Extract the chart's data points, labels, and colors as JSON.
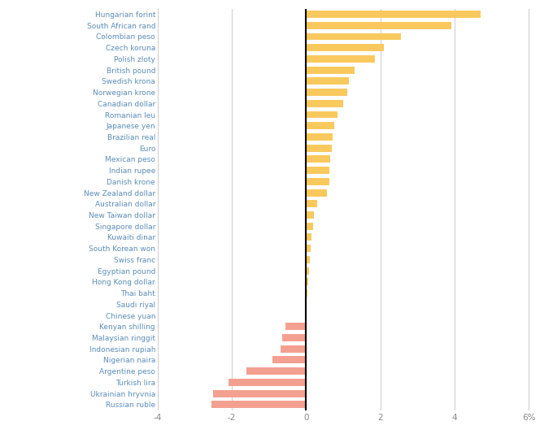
{
  "currencies": [
    "Hungarian forint",
    "South African rand",
    "Colombian peso",
    "Czech koruna",
    "Polish zloty",
    "British pound",
    "Swedish krona",
    "Norwegian krone",
    "Canadian dollar",
    "Romanian leu",
    "Japanese yen",
    "Brazilian real",
    "Euro",
    "Mexican peso",
    "Indian rupee",
    "Danish krone",
    "New Zealand dollar",
    "Australian dollar",
    "New Taiwan dollar",
    "Singapore dollar",
    "Kuwaiti dinar",
    "South Korean won",
    "Swiss franc",
    "Egyptian pound",
    "Hong Kong dollar",
    "Thai baht",
    "Saudi riyal",
    "Chinese yuan",
    "Kenyan shilling",
    "Malaysian ringgit",
    "Indonesian rupiah",
    "Nigerian naira",
    "Argentine peso",
    "Turkish lira",
    "Ukrainian hryvnia",
    "Russian ruble"
  ],
  "values": [
    4.7,
    3.9,
    2.55,
    2.1,
    1.85,
    1.3,
    1.15,
    1.1,
    1.0,
    0.85,
    0.75,
    0.72,
    0.68,
    0.65,
    0.63,
    0.62,
    0.55,
    0.3,
    0.2,
    0.18,
    0.15,
    0.12,
    0.1,
    0.08,
    0.05,
    0.03,
    0.01,
    -0.03,
    -0.55,
    -0.65,
    -0.7,
    -0.9,
    -1.6,
    -2.1,
    -2.5,
    -2.55
  ],
  "positive_color": "#F9C95E",
  "negative_color": "#F4A090",
  "background_color": "#FFFFFF",
  "grid_color": "#D0D0D0",
  "label_color": "#5B8DB8",
  "xlim": [
    -4,
    6.2
  ],
  "xticks": [
    -4,
    -2,
    0,
    2,
    4,
    6
  ],
  "xtick_labels": [
    "-4",
    "-2",
    "0",
    "2",
    "4",
    "6%"
  ],
  "bar_height": 0.65
}
